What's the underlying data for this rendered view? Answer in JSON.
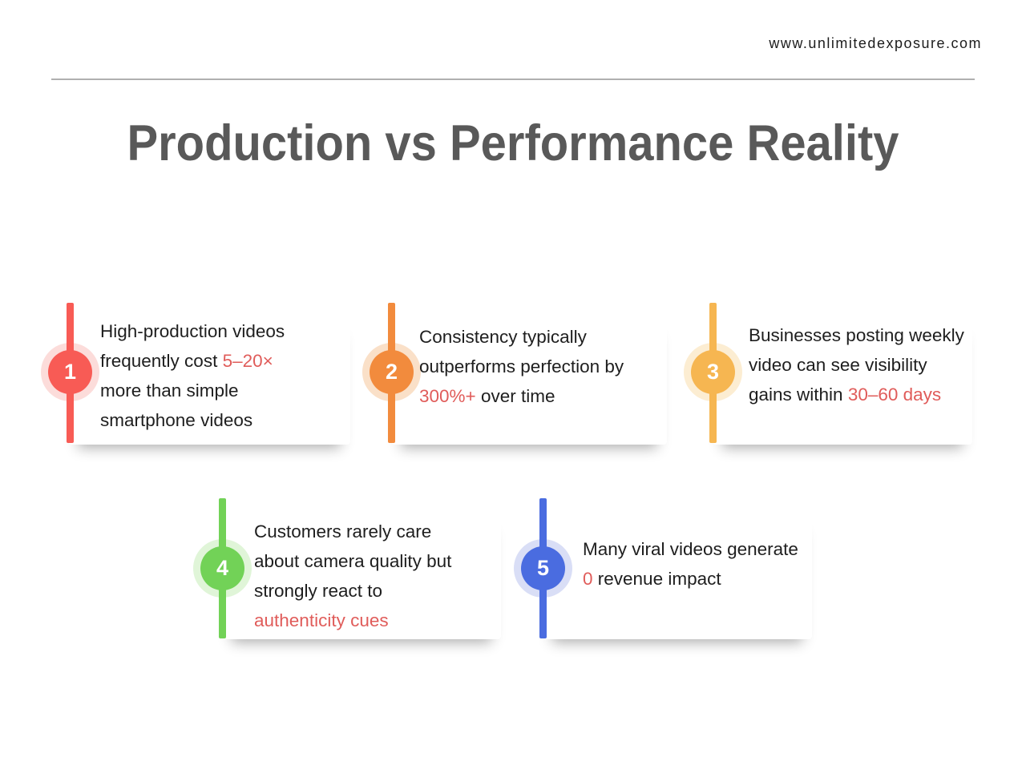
{
  "header": {
    "website_url": "www.unlimitedexposure.com",
    "title": "Production vs Performance Reality",
    "title_color": "#595959",
    "divider_color": "#b0b0b0"
  },
  "text_color": "#1e1e1e",
  "highlight_color": "#e05c5a",
  "items": [
    {
      "number": "1",
      "color": "#f85b55",
      "halo_color": "#fcdcda",
      "lines": [
        [
          {
            "t": "High-production videos"
          }
        ],
        [
          {
            "t": "frequently cost "
          },
          {
            "t": "5–20×",
            "hl": true
          }
        ],
        [
          {
            "t": "more than simple"
          }
        ],
        [
          {
            "t": "smartphone videos"
          }
        ]
      ]
    },
    {
      "number": "2",
      "color": "#f28b3d",
      "halo_color": "#fae0c8",
      "lines": [
        [
          {
            "t": "Consistency typically"
          }
        ],
        [
          {
            "t": "outperforms perfection by"
          }
        ],
        [
          {
            "t": "300%+",
            "hl": true
          },
          {
            "t": " over time"
          }
        ]
      ]
    },
    {
      "number": "3",
      "color": "#f6b651",
      "halo_color": "#fcedd2",
      "lines": [
        [
          {
            "t": "Businesses posting weekly"
          }
        ],
        [
          {
            "t": "video can see visibility"
          }
        ],
        [
          {
            "t": "gains within "
          },
          {
            "t": "30–60 days",
            "hl": true
          }
        ]
      ]
    },
    {
      "number": "4",
      "color": "#72d257",
      "halo_color": "#e0f5d8",
      "lines": [
        [
          {
            "t": "Customers rarely care"
          }
        ],
        [
          {
            "t": "about camera quality but"
          }
        ],
        [
          {
            "t": "strongly react to"
          }
        ],
        [
          {
            "t": "authenticity cues",
            "hl": true
          }
        ]
      ]
    },
    {
      "number": "5",
      "color": "#4a6ce0",
      "halo_color": "#d9def6",
      "lines": [
        [
          {
            "t": "Many viral videos generate"
          }
        ],
        [
          {
            "t": "0",
            "hl": true
          },
          {
            "t": " revenue impact"
          }
        ]
      ]
    }
  ]
}
